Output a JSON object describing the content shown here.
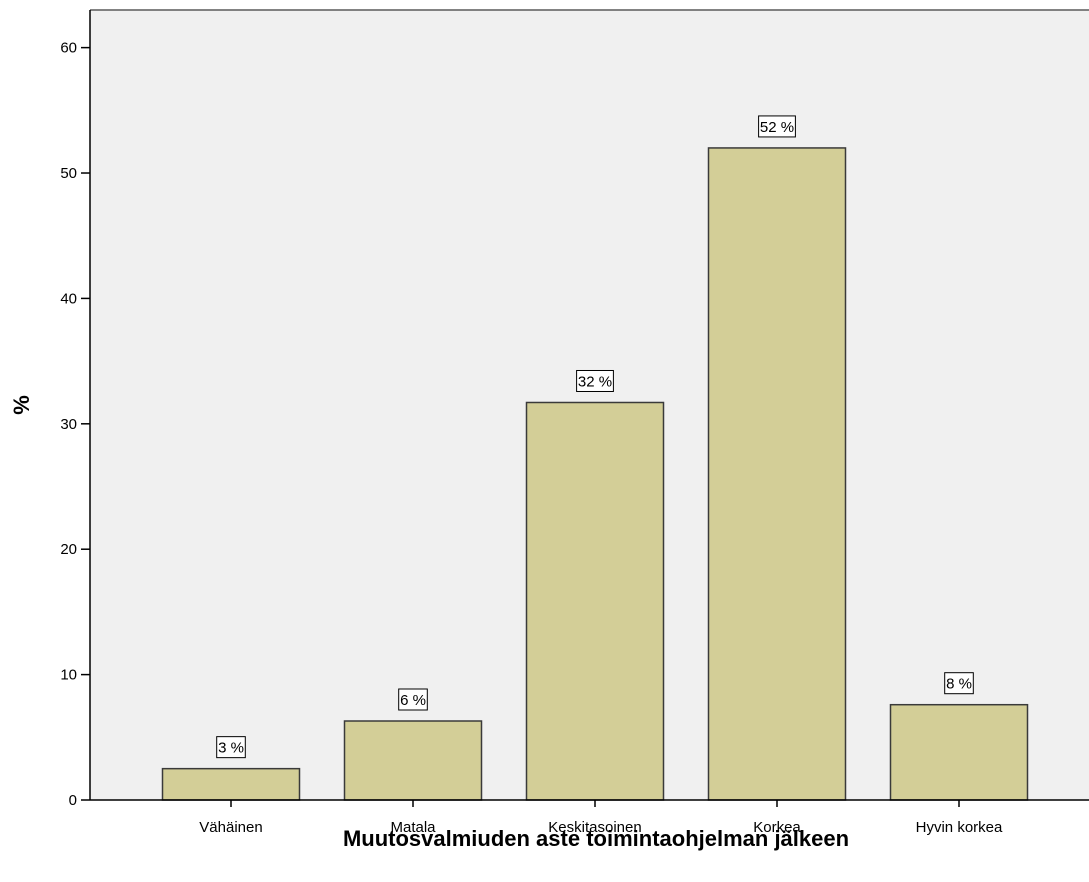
{
  "chart_data": {
    "type": "bar",
    "categories": [
      "Vähäinen",
      "Matala",
      "Keskitasoinen",
      "Korkea",
      "Hyvin korkea"
    ],
    "values": [
      2.5,
      6.3,
      31.7,
      52.0,
      7.6
    ],
    "data_labels": [
      "3 %",
      "6 %",
      "32 %",
      "52 %",
      "8 %"
    ],
    "title": "",
    "xlabel": "Muutosvalmiuden aste toimintaohjelman jälkeen",
    "ylabel": "%",
    "ylim": [
      0,
      63
    ],
    "yticks": [
      0,
      10,
      20,
      30,
      40,
      50,
      60
    ],
    "grid": false,
    "colors": {
      "plot_background": "#f0f0f0",
      "bar_fill": "#d3ce97",
      "bar_stroke": "#3a3a3a",
      "axis": "#000000",
      "frame": "#5a5a5a"
    }
  }
}
